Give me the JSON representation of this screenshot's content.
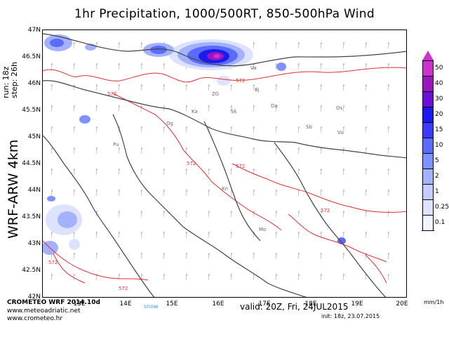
{
  "title": "1hr Precipitation, 1000/500RT, 850-500hPa Wind",
  "run_label": "run: 18z",
  "step_label": "step: 26h",
  "model_label": "WRF-ARW 4km",
  "lat_labels": [
    "47N",
    "46.5N",
    "46N",
    "45.5N",
    "45N",
    "44.5N",
    "44N",
    "43.5N",
    "43N",
    "42.5N",
    "42N"
  ],
  "lon_labels": [
    "13E",
    "14E",
    "15E",
    "16E",
    "17E",
    "18E",
    "19E",
    "20E"
  ],
  "colorbar": {
    "levels": [
      "50",
      "40",
      "30",
      "20",
      "15",
      "10",
      "5",
      "2",
      "1",
      "0.25",
      "0.1"
    ],
    "colors": [
      "#cc33cc",
      "#9a14c0",
      "#6a10d8",
      "#1a1aee",
      "#3a3aff",
      "#5a6cff",
      "#7d91ff",
      "#a3b1ff",
      "#c4cdff",
      "#dde3ff",
      "#f2f4ff"
    ],
    "unit": "mm/1h"
  },
  "map_labels": {
    "cities": [
      "Bj",
      "Da",
      "Os",
      "Sb",
      "Vu",
      "Ka",
      "Sk",
      "Og",
      "ZG",
      "Va",
      "Kn",
      "Pu",
      "Mo"
    ],
    "contour_value": "572"
  },
  "footer": {
    "brand": "CROMETEO WRF 2014.10d",
    "site1": "www.meteoadriatic.net",
    "site2": "www.crometeo.hr",
    "snow": "snow",
    "valid": "valid: 20Z, Fri, 24JUL2015",
    "init": "init: 18z, 23.07.2015"
  }
}
